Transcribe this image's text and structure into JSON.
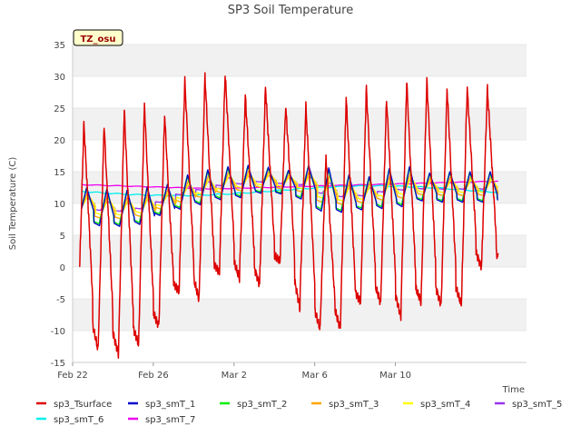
{
  "chart_data": {
    "type": "line",
    "title": "SP3 Soil Temperature",
    "xlabel": "Time",
    "ylabel": "Soil Temperature (C)",
    "annotation": "TZ_osu",
    "xlim": [
      0,
      22.5
    ],
    "ylim": [
      -15,
      35
    ],
    "yticks": [
      -15,
      -10,
      -5,
      0,
      5,
      10,
      15,
      20,
      25,
      30,
      35
    ],
    "xticks": [
      {
        "day": 0,
        "label": "Feb 22"
      },
      {
        "day": 4,
        "label": "Feb 26"
      },
      {
        "day": 8,
        "label": "Mar 2"
      },
      {
        "day": 12,
        "label": "Mar 6"
      },
      {
        "day": 16,
        "label": "Mar 10"
      }
    ],
    "grid": "horizontal bands",
    "legend_position": "bottom",
    "daily_extremes": {
      "days": [
        0,
        1,
        2,
        3,
        4,
        5,
        6,
        7,
        8,
        9,
        10,
        11,
        12,
        13,
        14,
        15,
        16,
        17,
        18,
        19
      ],
      "sp3_Tsurface_max": [
        22.6,
        22.5,
        24.8,
        25.6,
        24.0,
        29.4,
        30.2,
        30.5,
        27.0,
        28.5,
        25.3,
        25.4,
        17.4,
        26.8,
        28.2,
        26.5,
        29.4,
        29.4,
        28.1,
        null
      ],
      "sp3_Tsurface_min": [
        -8.6,
        -13.2,
        -13.6,
        -12.2,
        -9.2,
        -3.8,
        -5.1,
        -0.8,
        -1.8,
        -2.8,
        0.8,
        -6.5,
        -9.8,
        -9.6,
        -5.5,
        -5.6,
        -7.8,
        -5.5,
        -6.0,
        null
      ],
      "sp3_smT_1_max": [
        12.5,
        12.3,
        12.1,
        12.6,
        13.0,
        14.5,
        15.3,
        15.8,
        16.0,
        15.7,
        15.2,
        16.0,
        15.6,
        14.5,
        14.2,
        15.5,
        15.8,
        14.8,
        15.0,
        null
      ],
      "sp3_smT_1_min": [
        7.6,
        6.5,
        6.4,
        6.7,
        8.1,
        9.1,
        9.8,
        10.6,
        10.9,
        11.6,
        11.5,
        10.7,
        8.8,
        8.6,
        9.0,
        9.2,
        9.5,
        10.4,
        10.2,
        null
      ]
    },
    "series": [
      {
        "name": "sp3_Tsurface",
        "color": "#dd0000"
      },
      {
        "name": "sp3_smT_1",
        "color": "#0000cc"
      },
      {
        "name": "sp3_smT_2",
        "color": "#00ee00"
      },
      {
        "name": "sp3_smT_3",
        "color": "#ffa500"
      },
      {
        "name": "sp3_smT_4",
        "color": "#ffff00"
      },
      {
        "name": "sp3_smT_5",
        "color": "#9933ee"
      },
      {
        "name": "sp3_smT_6",
        "color": "#00eeee"
      },
      {
        "name": "sp3_smT_7",
        "color": "#ee00ee"
      }
    ]
  }
}
